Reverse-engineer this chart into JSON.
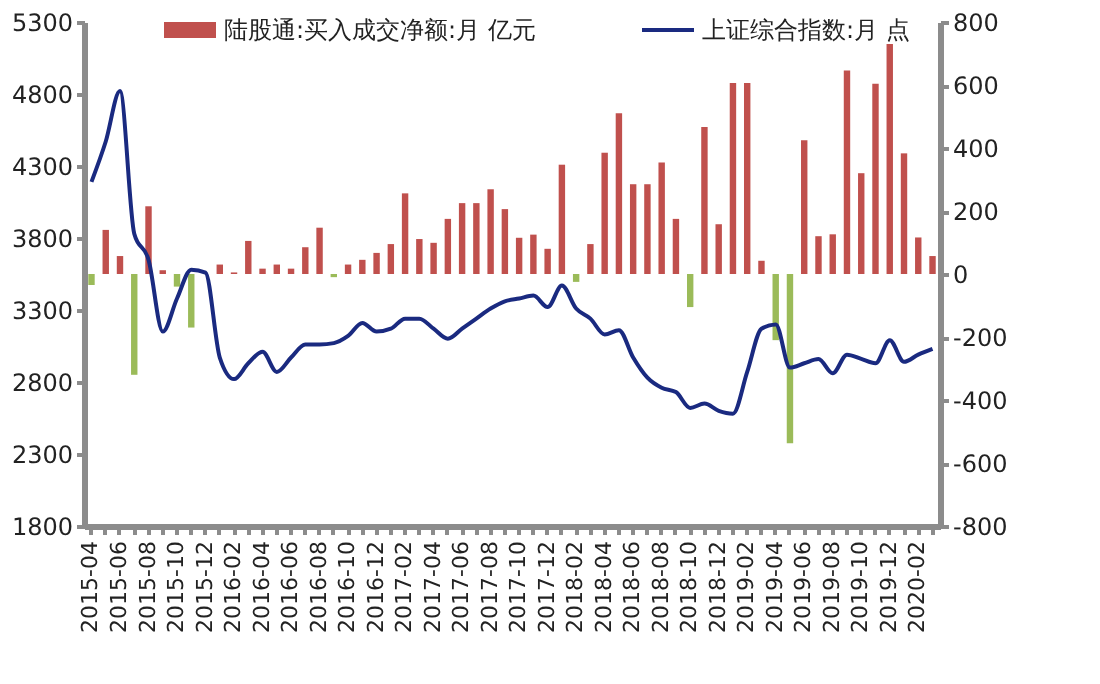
{
  "chart_data": {
    "type": "bar",
    "categories": [
      "2015-04",
      null,
      "2015-06",
      null,
      "2015-08",
      null,
      "2015-10",
      null,
      "2015-12",
      null,
      "2016-02",
      null,
      "2016-04",
      null,
      "2016-06",
      null,
      "2016-08",
      null,
      "2016-10",
      null,
      "2016-12",
      null,
      "2017-02",
      null,
      "2017-04",
      null,
      "2017-06",
      null,
      "2017-08",
      null,
      "2017-10",
      null,
      "2017-12",
      null,
      "2018-02",
      null,
      "2018-04",
      null,
      "2018-06",
      null,
      "2018-08",
      null,
      "2018-10",
      null,
      "2018-12",
      null,
      "2019-02",
      null,
      "2019-04",
      null,
      "2019-06",
      null,
      "2019-08",
      null,
      "2019-10",
      null,
      "2019-12",
      null,
      "2020-02",
      null
    ],
    "series": [
      {
        "name": "陆股通:买入成交净额:月 亿元",
        "axis": "y2",
        "colors": [
          "#9bbb59",
          "#c0504d",
          "#c0504d",
          "#9bbb59",
          "#c0504d",
          "#c0504d",
          "#9bbb59",
          "#9bbb59",
          "#c0504d",
          "#c0504d",
          "#c0504d",
          "#c0504d",
          "#c0504d",
          "#c0504d",
          "#c0504d",
          "#c0504d",
          "#c0504d",
          "#9bbb59",
          "#c0504d",
          "#c0504d",
          "#c0504d",
          "#c0504d",
          "#c0504d",
          "#c0504d",
          "#c0504d",
          "#c0504d",
          "#c0504d",
          "#c0504d",
          "#c0504d",
          "#c0504d",
          "#c0504d",
          "#c0504d",
          "#c0504d",
          "#c0504d",
          "#9bbb59",
          "#c0504d",
          "#c0504d",
          "#c0504d",
          "#c0504d",
          "#c0504d",
          "#c0504d",
          "#c0504d",
          "#9bbb59",
          "#c0504d",
          "#c0504d",
          "#c0504d",
          "#c0504d",
          "#c0504d",
          "#9bbb59",
          "#9bbb59",
          "#c0504d",
          "#c0504d",
          "#c0504d",
          "#c0504d",
          "#c0504d",
          "#c0504d",
          "#c0504d",
          "#c0504d",
          "#c0504d",
          "#c0504d"
        ],
        "values": [
          -35,
          140,
          57,
          -320,
          215,
          12,
          -40,
          -170,
          null,
          30,
          5,
          105,
          17,
          30,
          17,
          85,
          147,
          -10,
          30,
          45,
          67,
          95,
          256,
          111,
          99,
          175,
          225,
          225,
          269,
          206,
          115,
          125,
          80,
          347,
          -25,
          95,
          385,
          510,
          285,
          285,
          354,
          175,
          -105,
          467,
          158,
          606,
          606,
          42,
          -210,
          -537,
          425,
          120,
          126,
          646,
          320,
          604,
          730,
          383,
          116,
          57
        ]
      },
      {
        "name": "上证综合指数:月 点",
        "type": "line",
        "color": "#1a2a80",
        "values": [
          4190,
          4470,
          4820,
          3830,
          3650,
          3150,
          3380,
          3580,
          3560,
          2970,
          2820,
          2930,
          3010,
          2870,
          2970,
          3060,
          3060,
          3070,
          3120,
          3210,
          3150,
          3170,
          3240,
          3240,
          3170,
          3100,
          3170,
          3240,
          3310,
          3360,
          3380,
          3400,
          3320,
          3470,
          3310,
          3240,
          3130,
          3160,
          2970,
          2830,
          2760,
          2730,
          2620,
          2650,
          2600,
          2580,
          2870,
          3170,
          3200,
          2900,
          2930,
          2960,
          2860,
          2990,
          2960,
          2930,
          3090,
          2940,
          2990,
          3030
        ]
      }
    ],
    "ylim": [
      1800,
      5300
    ],
    "yticks": [
      1800,
      2300,
      2800,
      3300,
      3800,
      4300,
      4800,
      5300
    ],
    "y2lim": [
      -800,
      800
    ],
    "y2ticks": [
      -800,
      -600,
      -400,
      -200,
      0,
      200,
      400,
      600,
      800
    ],
    "grid": false,
    "legend": "top"
  }
}
